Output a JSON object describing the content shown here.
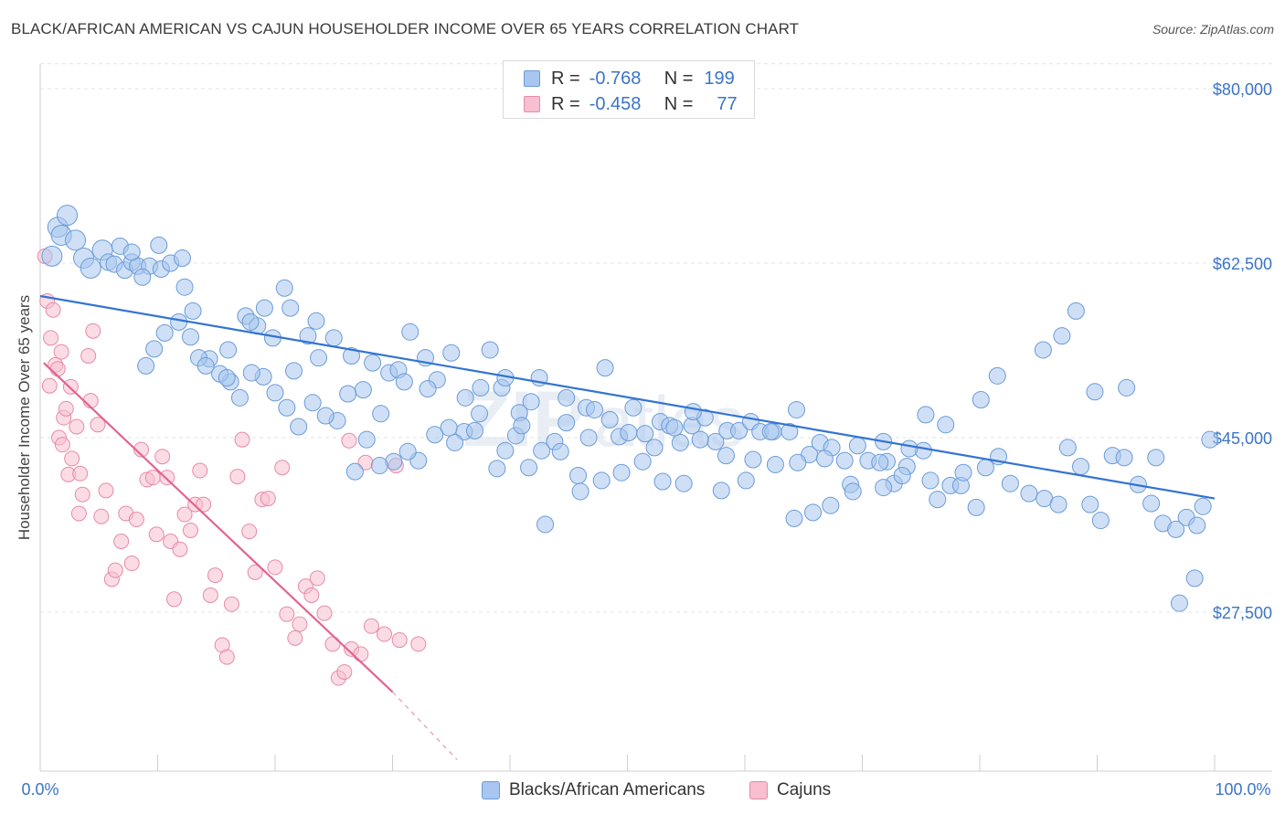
{
  "header": {
    "title": "BLACK/AFRICAN AMERICAN VS CAJUN HOUSEHOLDER INCOME OVER 65 YEARS CORRELATION CHART",
    "source": "Source: ZipAtlas.com"
  },
  "legend": {
    "rows": [
      {
        "r_label": "R =",
        "r_value": "-0.768",
        "n_label": "N =",
        "n_value": "199"
      },
      {
        "r_label": "R =",
        "r_value": "-0.458",
        "n_label": "N =",
        "n_value": "77"
      }
    ]
  },
  "watermark": {
    "text_a": "ZIP",
    "text_b": "atlas"
  },
  "colors": {
    "blue_fill": "#a8c6ef",
    "blue_stroke": "#6b9bd8",
    "blue_line": "#3374d1",
    "pink_fill": "#f7bfd0",
    "pink_stroke": "#e78aa8",
    "pink_line": "#e26490",
    "axis_text": "#3b74c8",
    "grid": "#e4e4e4"
  },
  "chart_data": {
    "type": "scatter",
    "title": "BLACK/AFRICAN AMERICAN VS CAJUN HOUSEHOLDER INCOME OVER 65 YEARS CORRELATION CHART",
    "xlabel": "",
    "ylabel": "Householder Income Over 65 years",
    "xlim": [
      0,
      100
    ],
    "ylim": [
      11000,
      84000
    ],
    "x_tick_labels": [
      "0.0%",
      "100.0%"
    ],
    "y_ticks": [
      27500,
      45000,
      62500,
      80000
    ],
    "y_tick_labels": [
      "$27,500",
      "$45,000",
      "$62,500",
      "$80,000"
    ],
    "grid": true,
    "legend_position": "top-center",
    "series": [
      {
        "name": "Blacks/African Americans",
        "color": "#a8c6ef",
        "r": -0.768,
        "n": 199,
        "trend": {
          "x": [
            0,
            100
          ],
          "y": [
            59200,
            38900
          ]
        },
        "points": [
          [
            1,
            63200
          ],
          [
            1.5,
            66100
          ],
          [
            1.8,
            65300
          ],
          [
            2.3,
            67300
          ],
          [
            3,
            64800
          ],
          [
            3.7,
            63000
          ],
          [
            4.3,
            62000
          ],
          [
            5.3,
            63800
          ],
          [
            5.8,
            62600
          ],
          [
            6.3,
            62400
          ],
          [
            7.2,
            61800
          ],
          [
            7.8,
            62600
          ],
          [
            8.3,
            62200
          ],
          [
            9.3,
            62200
          ],
          [
            10.3,
            61900
          ],
          [
            11.1,
            62500
          ],
          [
            12.3,
            60100
          ],
          [
            8.7,
            61100
          ],
          [
            6.8,
            64200
          ],
          [
            7.8,
            63600
          ],
          [
            10.1,
            64300
          ],
          [
            12.1,
            63000
          ],
          [
            13,
            57700
          ],
          [
            16,
            53800
          ],
          [
            17.5,
            57200
          ],
          [
            18.5,
            56200
          ],
          [
            19.1,
            58000
          ],
          [
            20.8,
            60000
          ],
          [
            21.3,
            58000
          ],
          [
            22.8,
            55200
          ],
          [
            23.5,
            56700
          ],
          [
            25,
            55000
          ],
          [
            26.5,
            53200
          ],
          [
            27.5,
            49800
          ],
          [
            28.3,
            52500
          ],
          [
            29.7,
            51500
          ],
          [
            30.5,
            51800
          ],
          [
            31.5,
            55600
          ],
          [
            32.8,
            53000
          ],
          [
            33.8,
            50800
          ],
          [
            35,
            53500
          ],
          [
            36.2,
            49000
          ],
          [
            37.5,
            50000
          ],
          [
            38.3,
            53800
          ],
          [
            39.3,
            50000
          ],
          [
            40.8,
            47500
          ],
          [
            41.8,
            48600
          ],
          [
            42.7,
            43700
          ],
          [
            43.8,
            44600
          ],
          [
            44.8,
            49000
          ],
          [
            45.8,
            41200
          ],
          [
            46.5,
            48000
          ],
          [
            47.2,
            47800
          ],
          [
            48.1,
            52000
          ],
          [
            49.3,
            45100
          ],
          [
            50.5,
            48000
          ],
          [
            51.5,
            45400
          ],
          [
            52.8,
            46600
          ],
          [
            53.6,
            46200
          ],
          [
            54.5,
            44500
          ],
          [
            55.5,
            46200
          ],
          [
            56.6,
            47000
          ],
          [
            57.5,
            44600
          ],
          [
            58.5,
            45700
          ],
          [
            59.5,
            45700
          ],
          [
            60.5,
            46600
          ],
          [
            61.3,
            45600
          ],
          [
            62.4,
            45600
          ],
          [
            63.8,
            45600
          ],
          [
            64.4,
            47800
          ],
          [
            65.5,
            43300
          ],
          [
            66.4,
            44500
          ],
          [
            67.4,
            44000
          ],
          [
            68.5,
            42700
          ],
          [
            69.6,
            44200
          ],
          [
            70.5,
            42700
          ],
          [
            71.8,
            44600
          ],
          [
            72.7,
            40400
          ],
          [
            73.8,
            42100
          ],
          [
            75.2,
            43700
          ],
          [
            76.4,
            38800
          ],
          [
            77.5,
            40200
          ],
          [
            78.4,
            40200
          ],
          [
            79.7,
            38000
          ],
          [
            80.5,
            42000
          ],
          [
            81.6,
            43100
          ],
          [
            82.6,
            40400
          ],
          [
            84.2,
            39400
          ],
          [
            85.5,
            38900
          ],
          [
            86.7,
            38300
          ],
          [
            87.5,
            44000
          ],
          [
            88.6,
            42100
          ],
          [
            89.4,
            38300
          ],
          [
            90.3,
            36700
          ],
          [
            91.3,
            43200
          ],
          [
            92.3,
            43000
          ],
          [
            93.5,
            40300
          ],
          [
            94.6,
            38400
          ],
          [
            95.6,
            36400
          ],
          [
            96.7,
            35800
          ],
          [
            97.6,
            37000
          ],
          [
            98.5,
            36200
          ],
          [
            99,
            38100
          ],
          [
            99.6,
            44800
          ],
          [
            97,
            28400
          ],
          [
            98.3,
            30900
          ],
          [
            95,
            43000
          ],
          [
            92.5,
            50000
          ],
          [
            89.8,
            49600
          ],
          [
            88.2,
            57700
          ],
          [
            87,
            55200
          ],
          [
            85.4,
            53800
          ],
          [
            81.5,
            51200
          ],
          [
            80.1,
            48800
          ],
          [
            77.1,
            46300
          ],
          [
            75.4,
            47300
          ],
          [
            74,
            43900
          ],
          [
            72.1,
            42600
          ],
          [
            71.5,
            42500
          ],
          [
            69,
            40300
          ],
          [
            67.3,
            38200
          ],
          [
            65.8,
            37500
          ],
          [
            64.2,
            36900
          ],
          [
            62.6,
            42300
          ],
          [
            60.1,
            40700
          ],
          [
            58,
            39700
          ],
          [
            55.6,
            47600
          ],
          [
            54.8,
            40400
          ],
          [
            53,
            40600
          ],
          [
            51.3,
            42600
          ],
          [
            49.5,
            41500
          ],
          [
            47.8,
            40700
          ],
          [
            46,
            39600
          ],
          [
            44.3,
            43600
          ],
          [
            43,
            36300
          ],
          [
            41.6,
            42000
          ],
          [
            40.5,
            45200
          ],
          [
            39.6,
            43700
          ],
          [
            38.9,
            41900
          ],
          [
            37.4,
            47400
          ],
          [
            36.1,
            45600
          ],
          [
            34.8,
            46000
          ],
          [
            33.6,
            45300
          ],
          [
            32.2,
            42700
          ],
          [
            31.3,
            43600
          ],
          [
            30.1,
            42600
          ],
          [
            28.9,
            42200
          ],
          [
            27.8,
            44800
          ],
          [
            26.8,
            41600
          ],
          [
            25.3,
            46700
          ],
          [
            24.3,
            47200
          ],
          [
            23.2,
            48500
          ],
          [
            22,
            46100
          ],
          [
            21,
            48000
          ],
          [
            20,
            49500
          ],
          [
            19,
            51100
          ],
          [
            18,
            51500
          ],
          [
            17,
            49000
          ],
          [
            16.2,
            50600
          ],
          [
            15.3,
            51400
          ],
          [
            14.4,
            52900
          ],
          [
            13.5,
            53000
          ],
          [
            12.8,
            55100
          ],
          [
            11.8,
            56600
          ],
          [
            10.6,
            55500
          ],
          [
            9.7,
            53900
          ],
          [
            9,
            52200
          ],
          [
            14.1,
            52200
          ],
          [
            15.9,
            51000
          ],
          [
            17.9,
            56600
          ],
          [
            19.8,
            55000
          ],
          [
            21.6,
            51700
          ],
          [
            23.7,
            53000
          ],
          [
            26.2,
            49400
          ],
          [
            29,
            47400
          ],
          [
            31,
            50600
          ],
          [
            33,
            49900
          ],
          [
            35.3,
            44500
          ],
          [
            37,
            45700
          ],
          [
            39.6,
            51000
          ],
          [
            41,
            46200
          ],
          [
            42.5,
            51000
          ],
          [
            44.8,
            46500
          ],
          [
            46.7,
            45000
          ],
          [
            48.5,
            46800
          ],
          [
            50.1,
            45500
          ],
          [
            52.3,
            44000
          ],
          [
            54,
            46000
          ],
          [
            56.2,
            44800
          ],
          [
            58.4,
            43200
          ],
          [
            60.7,
            42800
          ],
          [
            62.2,
            45600
          ],
          [
            64.5,
            42500
          ],
          [
            66.8,
            42900
          ],
          [
            69.2,
            39600
          ],
          [
            71.8,
            40000
          ],
          [
            73.4,
            41200
          ],
          [
            75.8,
            40700
          ],
          [
            78.6,
            41500
          ]
        ]
      },
      {
        "name": "Cajuns",
        "color": "#f7bfd0",
        "r": -0.458,
        "n": 77,
        "trend": {
          "x": [
            0.3,
            30
          ],
          "y": [
            52500,
            19500
          ],
          "dashed_to": {
            "x": 35.5,
            "y": 12700
          }
        },
        "points": [
          [
            0.4,
            63200
          ],
          [
            0.6,
            58700
          ],
          [
            0.9,
            55000
          ],
          [
            1.1,
            57800
          ],
          [
            1.3,
            52300
          ],
          [
            1.5,
            51900
          ],
          [
            1.8,
            53600
          ],
          [
            2,
            47000
          ],
          [
            2.2,
            47900
          ],
          [
            2.6,
            50100
          ],
          [
            0.8,
            50200
          ],
          [
            1.6,
            45000
          ],
          [
            1.9,
            44300
          ],
          [
            2.4,
            41300
          ],
          [
            2.7,
            42900
          ],
          [
            3.1,
            46100
          ],
          [
            3.4,
            41400
          ],
          [
            3.6,
            39300
          ],
          [
            3.3,
            37400
          ],
          [
            4.1,
            53200
          ],
          [
            4.5,
            55700
          ],
          [
            4.3,
            48700
          ],
          [
            4.9,
            46300
          ],
          [
            5.2,
            37100
          ],
          [
            5.6,
            39700
          ],
          [
            6.1,
            30800
          ],
          [
            6.4,
            31700
          ],
          [
            6.9,
            34600
          ],
          [
            7.3,
            37400
          ],
          [
            7.8,
            32400
          ],
          [
            8.2,
            36800
          ],
          [
            8.6,
            43800
          ],
          [
            9.1,
            40800
          ],
          [
            9.6,
            41000
          ],
          [
            9.9,
            35300
          ],
          [
            10.4,
            43100
          ],
          [
            10.8,
            41000
          ],
          [
            11.1,
            34600
          ],
          [
            11.4,
            28800
          ],
          [
            11.9,
            33800
          ],
          [
            12.3,
            37300
          ],
          [
            12.8,
            35700
          ],
          [
            13.2,
            38300
          ],
          [
            13.6,
            41700
          ],
          [
            13.9,
            38300
          ],
          [
            14.5,
            29200
          ],
          [
            14.9,
            31200
          ],
          [
            15.5,
            24200
          ],
          [
            15.9,
            23000
          ],
          [
            16.3,
            28300
          ],
          [
            16.8,
            41100
          ],
          [
            17.2,
            44800
          ],
          [
            17.8,
            35600
          ],
          [
            18.3,
            31500
          ],
          [
            18.9,
            38800
          ],
          [
            19.4,
            38900
          ],
          [
            20,
            32000
          ],
          [
            20.6,
            42000
          ],
          [
            21,
            27300
          ],
          [
            21.7,
            24900
          ],
          [
            22.1,
            26300
          ],
          [
            22.6,
            30100
          ],
          [
            23.1,
            29200
          ],
          [
            23.6,
            30900
          ],
          [
            24.2,
            27400
          ],
          [
            24.9,
            24300
          ],
          [
            25.4,
            20900
          ],
          [
            25.9,
            21500
          ],
          [
            26.5,
            23800
          ],
          [
            27.3,
            23300
          ],
          [
            28.2,
            26100
          ],
          [
            29.3,
            25300
          ],
          [
            30.6,
            24700
          ],
          [
            26.3,
            44700
          ],
          [
            27.7,
            42500
          ],
          [
            30.3,
            42200
          ],
          [
            32.2,
            24300
          ]
        ]
      }
    ]
  },
  "bottom_legend": {
    "items": [
      {
        "label": "Blacks/African Americans"
      },
      {
        "label": "Cajuns"
      }
    ]
  }
}
